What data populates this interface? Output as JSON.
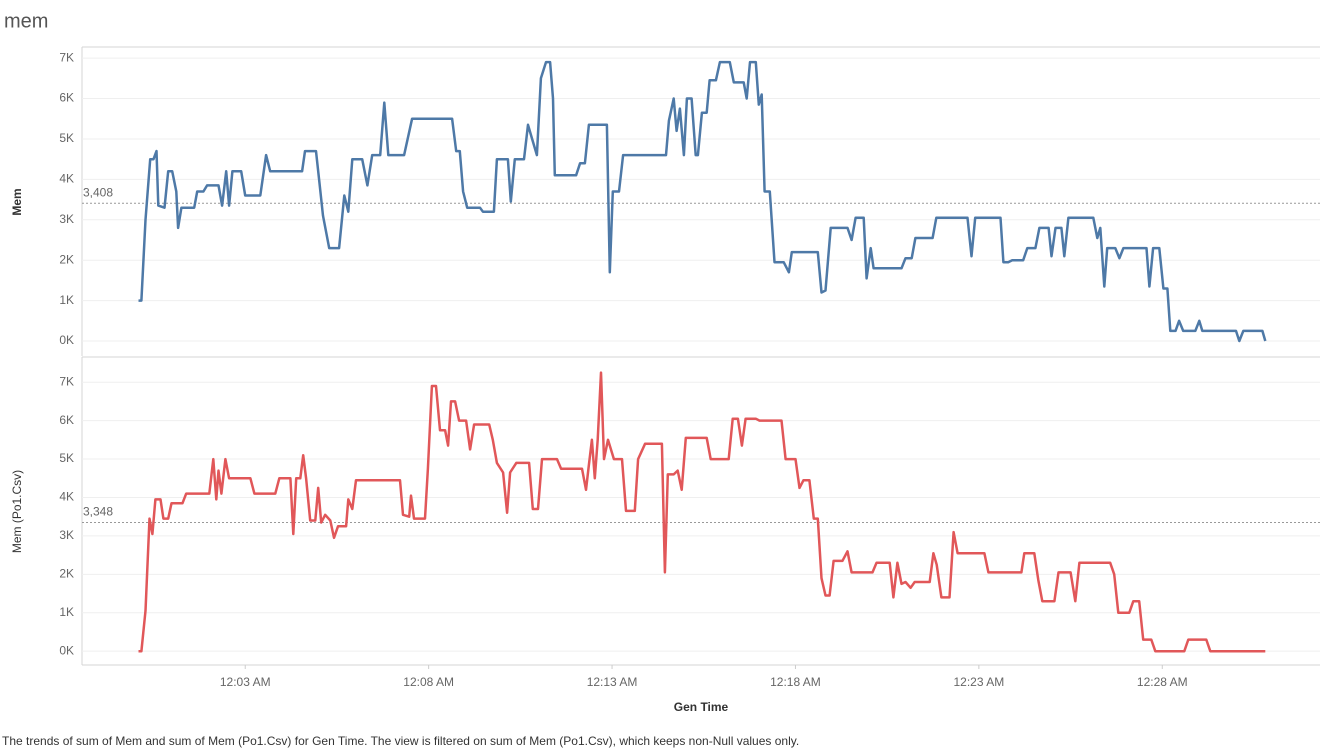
{
  "title": "mem",
  "caption": "The trends of sum of Mem and sum of Mem (Po1.Csv) for Gen Time. The view is filtered on sum of Mem (Po1.Csv), which keeps non-Null values only.",
  "chart_data": [
    {
      "type": "line",
      "ylabel": "Mem",
      "color": "#4e79a7",
      "grid": true,
      "xlim": [
        -1.45,
        32.3
      ],
      "ylim": [
        -370,
        7250
      ],
      "yticks": [
        {
          "value": 0,
          "label": "0K"
        },
        {
          "value": 1000,
          "label": "1K"
        },
        {
          "value": 2000,
          "label": "2K"
        },
        {
          "value": 3000,
          "label": "3K"
        },
        {
          "value": 4000,
          "label": "4K"
        },
        {
          "value": 5000,
          "label": "5K"
        },
        {
          "value": 6000,
          "label": "6K"
        },
        {
          "value": 7000,
          "label": "7K"
        }
      ],
      "reference_line": {
        "value": 3408,
        "label": "3,408"
      },
      "x": [
        0.09,
        0.17,
        0.28,
        0.41,
        0.5,
        0.58,
        0.63,
        0.8,
        0.9,
        1.01,
        1.12,
        1.17,
        1.26,
        1.61,
        1.69,
        1.86,
        1.96,
        2.27,
        2.37,
        2.48,
        2.56,
        2.65,
        2.89,
        3.0,
        3.41,
        3.57,
        3.68,
        4.55,
        4.63,
        4.93,
        5.02,
        5.12,
        5.29,
        5.56,
        5.7,
        5.81,
        5.92,
        6.19,
        6.33,
        6.46,
        6.68,
        6.79,
        6.9,
        7.33,
        7.55,
        8.64,
        8.75,
        8.85,
        8.94,
        9.05,
        9.4,
        9.48,
        9.78,
        9.86,
        10.16,
        10.24,
        10.35,
        10.6,
        10.71,
        10.82,
        10.95,
        11.06,
        11.2,
        11.31,
        11.39,
        11.44,
        12.02,
        12.13,
        12.26,
        12.37,
        12.86,
        12.94,
        13.02,
        13.19,
        13.3,
        14.47,
        14.55,
        14.68,
        14.76,
        14.85,
        14.96,
        15.04,
        15.17,
        15.28,
        15.34,
        15.45,
        15.58,
        15.66,
        15.83,
        15.94,
        16.21,
        16.32,
        16.59,
        16.67,
        16.76,
        16.92,
        17.0,
        17.08,
        17.16,
        17.3,
        17.43,
        17.68,
        17.82,
        17.9,
        18.61,
        18.71,
        18.82,
        18.96,
        19.42,
        19.53,
        19.64,
        19.86,
        19.94,
        20.05,
        20.13,
        20.89,
        21.0,
        21.17,
        21.27,
        21.74,
        21.84,
        22.69,
        22.8,
        22.9,
        23.59,
        23.67,
        23.8,
        23.91,
        24.21,
        24.32,
        24.54,
        24.65,
        24.9,
        24.98,
        25.09,
        25.25,
        25.33,
        25.44,
        26.12,
        26.23,
        26.31,
        26.42,
        26.5,
        26.72,
        26.83,
        26.94,
        27.57,
        27.65,
        27.75,
        27.92,
        28.03,
        28.14,
        28.22,
        28.36,
        28.46,
        28.57,
        28.9,
        29.01,
        29.09,
        30.01,
        30.1,
        30.21,
        30.73,
        30.81
      ],
      "values": [
        1000,
        1000,
        3000,
        4500,
        4500,
        4700,
        3350,
        3300,
        4200,
        4200,
        3700,
        2800,
        3300,
        3300,
        3700,
        3700,
        3850,
        3850,
        3350,
        4200,
        3350,
        4200,
        4200,
        3600,
        3600,
        4600,
        4200,
        4200,
        4700,
        4700,
        3950,
        3100,
        2300,
        2300,
        3600,
        3200,
        4500,
        4500,
        3850,
        4600,
        4600,
        5900,
        4600,
        4600,
        5500,
        5500,
        4700,
        4700,
        3700,
        3300,
        3300,
        3200,
        3200,
        4500,
        4500,
        3450,
        4500,
        4500,
        5350,
        5000,
        4600,
        6500,
        6900,
        6900,
        6000,
        4100,
        4100,
        4400,
        4400,
        5350,
        5350,
        1700,
        3700,
        3700,
        4600,
        4600,
        5450,
        6000,
        5200,
        5750,
        4600,
        6000,
        6000,
        4600,
        4600,
        5650,
        5650,
        6450,
        6450,
        6900,
        6900,
        6400,
        6400,
        6000,
        6900,
        6900,
        5850,
        6100,
        3700,
        3700,
        1950,
        1950,
        1700,
        2200,
        2200,
        1200,
        1250,
        2800,
        2800,
        2500,
        3050,
        3050,
        1550,
        2300,
        1800,
        1800,
        2050,
        2050,
        2550,
        2550,
        3050,
        3050,
        2100,
        3050,
        3050,
        1950,
        1950,
        2000,
        2000,
        2300,
        2300,
        2800,
        2800,
        2100,
        2800,
        2800,
        2100,
        3050,
        3050,
        2550,
        2800,
        1350,
        2300,
        2300,
        2050,
        2300,
        2300,
        1350,
        2300,
        2300,
        1300,
        1300,
        250,
        250,
        500,
        250,
        250,
        500,
        250,
        250,
        0,
        250,
        250,
        0
      ]
    },
    {
      "type": "line",
      "ylabel": "Mem (Po1.Csv)",
      "xlabel": "Gen Time",
      "color": "#e15759",
      "grid": true,
      "xlim": [
        -1.45,
        32.3
      ],
      "ylim": [
        -360,
        7630
      ],
      "yticks": [
        {
          "value": 0,
          "label": "0K"
        },
        {
          "value": 1000,
          "label": "1K"
        },
        {
          "value": 2000,
          "label": "2K"
        },
        {
          "value": 3000,
          "label": "3K"
        },
        {
          "value": 4000,
          "label": "4K"
        },
        {
          "value": 5000,
          "label": "5K"
        },
        {
          "value": 6000,
          "label": "6K"
        },
        {
          "value": 7000,
          "label": "7K"
        }
      ],
      "xticks": [
        {
          "value": 3,
          "label": "12:03 AM"
        },
        {
          "value": 8,
          "label": "12:08 AM"
        },
        {
          "value": 13,
          "label": "12:13 AM"
        },
        {
          "value": 18,
          "label": "12:18 AM"
        },
        {
          "value": 23,
          "label": "12:23 AM"
        },
        {
          "value": 28,
          "label": "12:28 AM"
        }
      ],
      "reference_line": {
        "value": 3348,
        "label": "3,348"
      },
      "x": [
        0.09,
        0.17,
        0.28,
        0.39,
        0.47,
        0.55,
        0.69,
        0.77,
        0.9,
        0.99,
        1.29,
        1.39,
        2.02,
        2.13,
        2.21,
        2.27,
        2.35,
        2.46,
        2.56,
        3.14,
        3.25,
        3.82,
        3.93,
        4.23,
        4.31,
        4.39,
        4.5,
        4.58,
        4.66,
        4.77,
        4.91,
        4.99,
        5.07,
        5.18,
        5.32,
        5.42,
        5.53,
        5.75,
        5.81,
        5.92,
        6.02,
        7.22,
        7.3,
        7.47,
        7.52,
        7.6,
        7.9,
        7.98,
        8.09,
        8.2,
        8.31,
        8.45,
        8.53,
        8.61,
        8.72,
        8.83,
        9.02,
        9.13,
        9.24,
        9.65,
        9.75,
        9.86,
        10.03,
        10.14,
        10.22,
        10.39,
        10.74,
        10.84,
        10.98,
        11.09,
        11.5,
        11.61,
        12.18,
        12.29,
        12.37,
        12.45,
        12.53,
        12.61,
        12.7,
        12.78,
        12.89,
        13.05,
        13.27,
        13.38,
        13.62,
        13.71,
        13.9,
        14.36,
        14.44,
        14.52,
        14.68,
        14.79,
        14.9,
        15.01,
        15.58,
        15.69,
        16.18,
        16.29,
        16.43,
        16.54,
        16.64,
        16.92,
        17.02,
        17.62,
        17.73,
        18.0,
        18.11,
        18.22,
        18.38,
        18.5,
        18.61,
        18.71,
        18.82,
        18.93,
        19.04,
        19.28,
        19.42,
        19.53,
        20.1,
        20.21,
        20.57,
        20.67,
        20.78,
        20.89,
        21.0,
        21.14,
        21.25,
        21.66,
        21.76,
        21.85,
        21.98,
        22.2,
        22.31,
        22.42,
        23.15,
        23.26,
        24.16,
        24.24,
        24.51,
        24.62,
        24.73,
        25.06,
        25.17,
        25.5,
        25.63,
        25.74,
        26.58,
        26.69,
        26.8,
        27.1,
        27.21,
        27.37,
        27.48,
        27.7,
        27.81,
        28.6,
        28.71,
        29.2,
        29.31,
        30.81
      ],
      "values": [
        0,
        0,
        1050,
        3450,
        3050,
        3950,
        3950,
        3450,
        3450,
        3850,
        3850,
        4100,
        4100,
        5000,
        3950,
        4700,
        4100,
        5000,
        4500,
        4500,
        4100,
        4100,
        4500,
        4500,
        3050,
        4500,
        4500,
        5100,
        4500,
        3400,
        3400,
        4250,
        3350,
        3550,
        3400,
        2950,
        3250,
        3250,
        3950,
        3700,
        4450,
        4450,
        3550,
        3500,
        4050,
        3450,
        3450,
        4750,
        6900,
        6900,
        5750,
        5750,
        5350,
        6500,
        6500,
        6000,
        6000,
        5250,
        5900,
        5900,
        5500,
        4900,
        4650,
        3600,
        4650,
        4900,
        4900,
        3700,
        3700,
        5000,
        5000,
        4750,
        4750,
        4200,
        4850,
        5500,
        4500,
        5500,
        7250,
        5000,
        5500,
        5000,
        5000,
        3650,
        3650,
        5000,
        5400,
        5400,
        2050,
        4600,
        4600,
        4700,
        4200,
        5550,
        5550,
        5000,
        5000,
        6050,
        6050,
        5350,
        6050,
        6050,
        6000,
        6000,
        5000,
        5000,
        4250,
        4450,
        4450,
        3450,
        3450,
        1900,
        1450,
        1450,
        2350,
        2350,
        2600,
        2050,
        2050,
        2300,
        2300,
        1400,
        2300,
        1750,
        1800,
        1650,
        1800,
        1800,
        2550,
        2250,
        1400,
        1400,
        3100,
        2550,
        2550,
        2050,
        2050,
        2550,
        2550,
        1850,
        1300,
        1300,
        2050,
        2050,
        1300,
        2300,
        2300,
        2000,
        1000,
        1000,
        1300,
        1300,
        300,
        300,
        0,
        0,
        300,
        300,
        0,
        0
      ]
    }
  ]
}
